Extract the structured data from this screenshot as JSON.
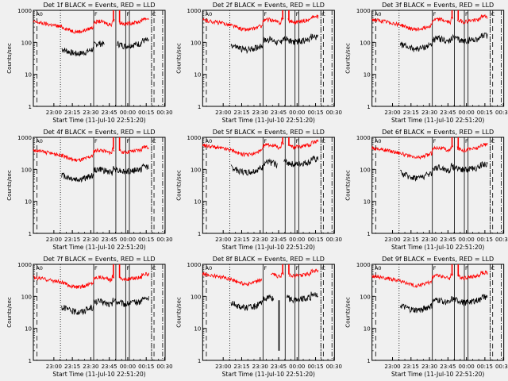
{
  "figure": {
    "background": "#f0f0f0",
    "colors": {
      "events": "#000000",
      "lld": "#ff0000",
      "axis": "#000000"
    },
    "ylabel": "Counts/sec",
    "xlabel": "Start Time (11-Jul-10 22:51:20)",
    "xticks": [
      "23:00",
      "23:15",
      "23:30",
      "23:45",
      "00:00",
      "00:15",
      "00:30"
    ],
    "yticks": [
      "1000",
      "100",
      "10",
      "1"
    ],
    "marker_labels": [
      "A0",
      "F",
      "F",
      "C"
    ]
  },
  "chart_data": [
    {
      "id": "det1f",
      "title": "Det 1f BLACK = Events, RED = LLD",
      "type": "line",
      "x_range_min": [
        -8,
        99
      ],
      "ylim": [
        1,
        1000
      ],
      "yscale": "log",
      "series": [
        {
          "name": "Events",
          "color": "#000000",
          "start": 15,
          "end": 86,
          "base": 60,
          "breaks": [
            [
              50,
              60
            ]
          ],
          "spikes": []
        },
        {
          "name": "LLD",
          "color": "#ff0000",
          "start": -8,
          "end": 86,
          "base": 290,
          "breaks": [
            [
              58,
              62
            ]
          ],
          "spikes": [
            [
              57,
              1000
            ],
            [
              62,
              1000
            ]
          ]
        }
      ],
      "vlines": {
        "dashed": [
          -5,
          90
        ],
        "dotted": [
          14,
          88
        ],
        "solid": [
          41,
          59,
          67,
          70
        ],
        "dashdot": [
          88,
          97
        ]
      }
    },
    {
      "id": "det2f",
      "title": "Det 2f BLACK = Events, RED = LLD",
      "type": "line",
      "x_range_min": [
        -8,
        99
      ],
      "ylim": [
        1,
        1000
      ],
      "yscale": "log",
      "series": [
        {
          "name": "Events",
          "color": "#000000",
          "start": 15,
          "end": 86,
          "base": 80,
          "breaks": [],
          "spikes": []
        },
        {
          "name": "LLD",
          "color": "#ff0000",
          "start": -8,
          "end": 86,
          "base": 330,
          "breaks": [
            [
              58,
              61
            ]
          ],
          "spikes": [
            [
              57,
              1000
            ],
            [
              62,
              1000
            ]
          ]
        }
      ],
      "vlines": {
        "dashed": [
          -5,
          90
        ],
        "dotted": [
          14,
          88
        ],
        "solid": [
          41,
          59,
          67,
          70
        ],
        "dashdot": [
          88,
          97
        ]
      }
    },
    {
      "id": "det3f",
      "title": "Det 3f BLACK = Events, RED = LLD",
      "type": "line",
      "x_range_min": [
        -8,
        99
      ],
      "ylim": [
        1,
        1000
      ],
      "yscale": "log",
      "series": [
        {
          "name": "Events",
          "color": "#000000",
          "start": 15,
          "end": 86,
          "base": 85,
          "breaks": [],
          "spikes": []
        },
        {
          "name": "LLD",
          "color": "#ff0000",
          "start": -8,
          "end": 86,
          "base": 340,
          "breaks": [
            [
              58,
              61
            ]
          ],
          "spikes": [
            [
              57,
              1000
            ],
            [
              62,
              1000
            ]
          ]
        }
      ],
      "vlines": {
        "dashed": [
          -5,
          90
        ],
        "dotted": [
          14,
          88
        ],
        "solid": [
          41,
          59,
          67,
          70
        ],
        "dashdot": [
          88,
          97
        ]
      }
    },
    {
      "id": "det4f",
      "title": "Det 4f BLACK = Events, RED = LLD",
      "type": "line",
      "x_range_min": [
        -8,
        99
      ],
      "ylim": [
        1,
        1000
      ],
      "yscale": "log",
      "series": [
        {
          "name": "Events",
          "color": "#000000",
          "start": 15,
          "end": 86,
          "base": 65,
          "breaks": [],
          "spikes": []
        },
        {
          "name": "LLD",
          "color": "#ff0000",
          "start": -8,
          "end": 86,
          "base": 260,
          "breaks": [
            [
              58,
              62
            ]
          ],
          "spikes": [
            [
              57,
              1000
            ],
            [
              62,
              1000
            ]
          ]
        }
      ],
      "vlines": {
        "dashed": [
          -5,
          90
        ],
        "dotted": [
          14,
          88
        ],
        "solid": [
          41,
          59,
          67,
          70
        ],
        "dashdot": [
          88,
          97
        ]
      }
    },
    {
      "id": "det5f",
      "title": "Det 5f BLACK = Events, RED = LLD",
      "type": "line",
      "x_range_min": [
        -8,
        99
      ],
      "ylim": [
        1,
        1000
      ],
      "yscale": "log",
      "series": [
        {
          "name": "Events",
          "color": "#000000",
          "start": 15,
          "end": 86,
          "base": 110,
          "breaks": [
            [
              53,
              58
            ]
          ],
          "spikes": []
        },
        {
          "name": "LLD",
          "color": "#ff0000",
          "start": -8,
          "end": 86,
          "base": 380,
          "breaks": [
            [
              58,
              61
            ]
          ],
          "spikes": [
            [
              57,
              1000
            ],
            [
              62,
              1000
            ]
          ]
        }
      ],
      "vlines": {
        "dashed": [
          -5,
          90
        ],
        "dotted": [
          14,
          88
        ],
        "solid": [
          41,
          59,
          67,
          70
        ],
        "dashdot": [
          88,
          97
        ]
      }
    },
    {
      "id": "det6f",
      "title": "Det 6f BLACK = Events, RED = LLD",
      "type": "line",
      "x_range_min": [
        -8,
        99
      ],
      "ylim": [
        1,
        1000
      ],
      "yscale": "log",
      "series": [
        {
          "name": "Events",
          "color": "#000000",
          "start": 15,
          "end": 86,
          "base": 75,
          "breaks": [],
          "spikes": []
        },
        {
          "name": "LLD",
          "color": "#ff0000",
          "start": -8,
          "end": 86,
          "base": 310,
          "breaks": [
            [
              58,
              61
            ]
          ],
          "spikes": [
            [
              57,
              1000
            ],
            [
              62,
              1000
            ]
          ]
        }
      ],
      "vlines": {
        "dashed": [
          -5,
          90
        ],
        "dotted": [
          14,
          88
        ],
        "solid": [
          41,
          59,
          67,
          70
        ],
        "dashdot": [
          88,
          97
        ]
      }
    },
    {
      "id": "det7f",
      "title": "Det 7f BLACK = Events, RED = LLD",
      "type": "line",
      "x_range_min": [
        -8,
        99
      ],
      "ylim": [
        1,
        1000
      ],
      "yscale": "log",
      "series": [
        {
          "name": "Events",
          "color": "#000000",
          "start": 15,
          "end": 86,
          "base": 45,
          "breaks": [],
          "spikes": []
        },
        {
          "name": "LLD",
          "color": "#ff0000",
          "start": -8,
          "end": 86,
          "base": 260,
          "breaks": [
            [
              58,
              62
            ]
          ],
          "spikes": [
            [
              57,
              1000
            ],
            [
              62,
              1000
            ]
          ]
        }
      ],
      "vlines": {
        "dashed": [
          -5,
          90
        ],
        "dotted": [
          14,
          88
        ],
        "solid": [
          41,
          59,
          67,
          70
        ],
        "dashdot": [
          88,
          97
        ]
      }
    },
    {
      "id": "det8f",
      "title": "Det 8f BLACK = Events, RED = LLD",
      "type": "line",
      "x_range_min": [
        -8,
        99
      ],
      "ylim": [
        1,
        1000
      ],
      "yscale": "log",
      "series": [
        {
          "name": "Events",
          "color": "#000000",
          "start": 15,
          "end": 86,
          "base": 60,
          "breaks": [
            [
              50,
              60
            ]
          ],
          "spikes": [
            [
              54,
              2
            ]
          ]
        },
        {
          "name": "LLD",
          "color": "#ff0000",
          "start": -8,
          "end": 86,
          "base": 330,
          "breaks": [
            [
              40,
              47
            ],
            [
              58,
              62
            ]
          ],
          "spikes": [
            [
              57,
              1000
            ],
            [
              62,
              1000
            ]
          ]
        }
      ],
      "vlines": {
        "dashed": [
          -5,
          90
        ],
        "dotted": [
          14,
          88
        ],
        "solid": [
          41,
          59,
          67,
          70
        ],
        "dashdot": [
          88,
          97
        ]
      }
    },
    {
      "id": "det9f",
      "title": "Det 9f BLACK = Events, RED = LLD",
      "type": "line",
      "x_range_min": [
        -8,
        99
      ],
      "ylim": [
        1,
        1000
      ],
      "yscale": "log",
      "series": [
        {
          "name": "Events",
          "color": "#000000",
          "start": 15,
          "end": 86,
          "base": 50,
          "breaks": [],
          "spikes": []
        },
        {
          "name": "LLD",
          "color": "#ff0000",
          "start": -8,
          "end": 86,
          "base": 290,
          "breaks": [
            [
              58,
              62
            ]
          ],
          "spikes": [
            [
              57,
              1000
            ],
            [
              62,
              1000
            ]
          ]
        }
      ],
      "vlines": {
        "dashed": [
          -5,
          90
        ],
        "dotted": [
          14,
          88
        ],
        "solid": [
          41,
          59,
          67,
          70
        ],
        "dashdot": [
          88,
          97
        ]
      }
    }
  ]
}
